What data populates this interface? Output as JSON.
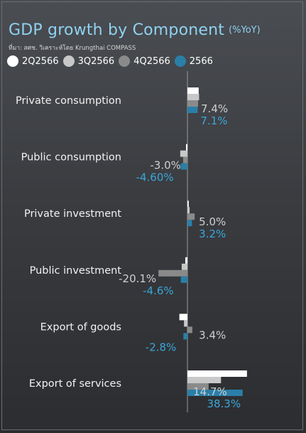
{
  "title": "GDP growth by Component",
  "title_unit": "(%YoY)",
  "source": "ที่มา: สศช. วิเคราะห์โดย Krungthai COMPASS",
  "colors": {
    "2Q2566": "#ffffff",
    "3Q2566": "#c8c8c8",
    "4Q2566": "#8a8a8a",
    "2566": "#2a7fa8",
    "label_gray": "#cfcfcf",
    "label_blue": "#3aa6d8"
  },
  "chart_data": {
    "type": "bar",
    "orientation": "horizontal",
    "categories": [
      "Private consumption",
      "Public consumption",
      "Private investment",
      "Public investment",
      "Export of goods",
      "Export of services"
    ],
    "series": [
      {
        "name": "2Q2566",
        "values": [
          7.8,
          -1.0,
          0.9,
          -1.5,
          -5.6,
          41.3
        ]
      },
      {
        "name": "3Q2566",
        "values": [
          8.1,
          -5.0,
          1.5,
          -4.0,
          -2.4,
          23.3
        ]
      },
      {
        "name": "4Q2566",
        "values": [
          7.4,
          -3.0,
          5.0,
          -20.1,
          3.4,
          14.7
        ]
      },
      {
        "name": "2566",
        "values": [
          7.1,
          -4.6,
          3.2,
          -4.6,
          -2.8,
          38.3
        ]
      }
    ],
    "labels_4Q2566": [
      "7.4%",
      "-3.0%",
      "5.0%",
      "-20.1%",
      "3.4%",
      "14.7%"
    ],
    "labels_2566": [
      "7.1%",
      "-4.60%",
      "3.2%",
      "-4.6%",
      "-2.8%",
      "38.3%"
    ],
    "xlim": [
      -30,
      45
    ],
    "legend": "top"
  }
}
